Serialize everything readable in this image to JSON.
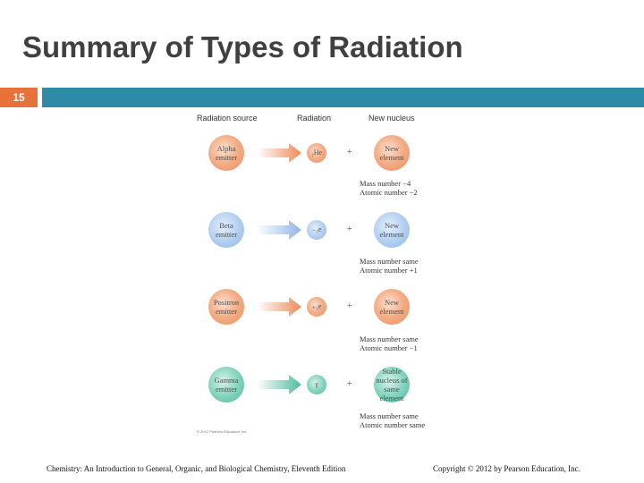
{
  "slide": {
    "title": "Summary of Types of Radiation",
    "number": "15"
  },
  "figure": {
    "headers": {
      "source": "Radiation source",
      "radiation": "Radiation",
      "nucleus": "New nucleus"
    },
    "rows": [
      {
        "emitter": "Alpha emitter",
        "particle": "₂He",
        "plus": "+",
        "nucleus": "New element",
        "note_line1": "Mass number −4",
        "note_line2": "Atomic number −2",
        "color": "#ef8b59"
      },
      {
        "emitter": "Beta emitter",
        "particle": "₋₁e",
        "plus": "+",
        "nucleus": "New element",
        "note_line1": "Mass number same",
        "note_line2": "Atomic number +1",
        "color": "#8fb5e6"
      },
      {
        "emitter": "Positron emitter",
        "particle": "₊₁e",
        "plus": "+",
        "nucleus": "New element",
        "note_line1": "Mass number same",
        "note_line2": "Atomic number −1",
        "color": "#ef8b59"
      },
      {
        "emitter": "Gamma emitter",
        "particle": "γ",
        "plus": "+",
        "nucleus": "Stable nucleus of same element",
        "note_line1": "Mass number same",
        "note_line2": "Atomic number same",
        "color": "#4dbb9f"
      }
    ],
    "credit": "© 2012 Pearson Education, Inc."
  },
  "footer": {
    "left": "Chemistry: An Introduction to General, Organic, and Biological Chemistry, Eleventh Edition",
    "right": "Copyright © 2012 by Pearson Education, Inc."
  },
  "colors": {
    "bar": "#2f8aa8",
    "badge": "#e8703a",
    "title": "#404040"
  }
}
